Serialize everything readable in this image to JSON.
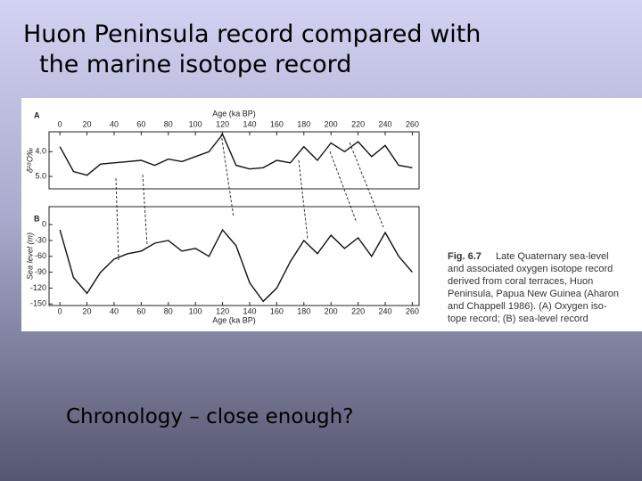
{
  "slide": {
    "title": [
      "Huon Peninsula record compared with",
      "the marine isotope record"
    ],
    "caption": {
      "label": "Fig. 6.7",
      "lines": [
        "Late Quaternary sea-level",
        "and associated oxygen isotope record",
        "derived from coral terraces, Huon",
        "Peninsula, Papua New Guinea (Aharon",
        "and Chappell 1986). (A) Oxygen iso-",
        "tope record; (B) sea-level record"
      ]
    },
    "footer": "Chronology – close enough?"
  },
  "chart_data": [
    {
      "type": "line",
      "panel": "A",
      "x_label": "Age (ka BP)",
      "y_label": "δ¹⁸O‰",
      "x_axis_position": "top",
      "color": "#111111",
      "x": [
        0,
        10,
        20,
        30,
        40,
        50,
        60,
        70,
        80,
        90,
        100,
        110,
        120,
        130,
        140,
        150,
        160,
        170,
        180,
        190,
        200,
        210,
        220,
        230,
        240,
        250,
        260
      ],
      "values": [
        3.8,
        4.8,
        4.95,
        4.5,
        4.45,
        4.4,
        4.35,
        4.55,
        4.3,
        4.4,
        4.2,
        4.0,
        3.3,
        4.55,
        4.7,
        4.65,
        4.35,
        4.45,
        3.8,
        4.35,
        3.65,
        4.0,
        3.6,
        4.2,
        3.75,
        4.55,
        4.65
      ],
      "xlim": [
        -8,
        265
      ],
      "ylim": [
        5.5,
        3.2
      ],
      "xticks": [
        0,
        20,
        40,
        60,
        80,
        100,
        120,
        140,
        160,
        180,
        200,
        220,
        240,
        260
      ],
      "yticks": [
        {
          "value": 4,
          "label": "4.0"
        },
        {
          "value": 5,
          "label": "5.0"
        }
      ]
    },
    {
      "type": "line",
      "panel": "B",
      "x_label": "Age (ka BP)",
      "y_label": "Sea level (m)",
      "x_axis_position": "bottom",
      "color": "#111111",
      "x": [
        0,
        10,
        20,
        30,
        40,
        50,
        60,
        70,
        80,
        90,
        100,
        110,
        120,
        130,
        140,
        150,
        160,
        170,
        180,
        190,
        200,
        210,
        220,
        230,
        240,
        250,
        260
      ],
      "values": [
        -10,
        -100,
        -130,
        -90,
        -65,
        -55,
        -50,
        -35,
        -30,
        -50,
        -45,
        -60,
        -10,
        -40,
        -110,
        -145,
        -120,
        -70,
        -30,
        -55,
        -20,
        -45,
        -25,
        -60,
        -15,
        -60,
        -90
      ],
      "xlim": [
        -8,
        265
      ],
      "ylim": [
        -153,
        34
      ],
      "xticks": [
        0,
        20,
        40,
        60,
        80,
        100,
        120,
        140,
        160,
        180,
        200,
        220,
        240,
        260
      ],
      "yticks": [
        0,
        -30,
        -60,
        -90,
        -120,
        -150
      ]
    }
  ]
}
